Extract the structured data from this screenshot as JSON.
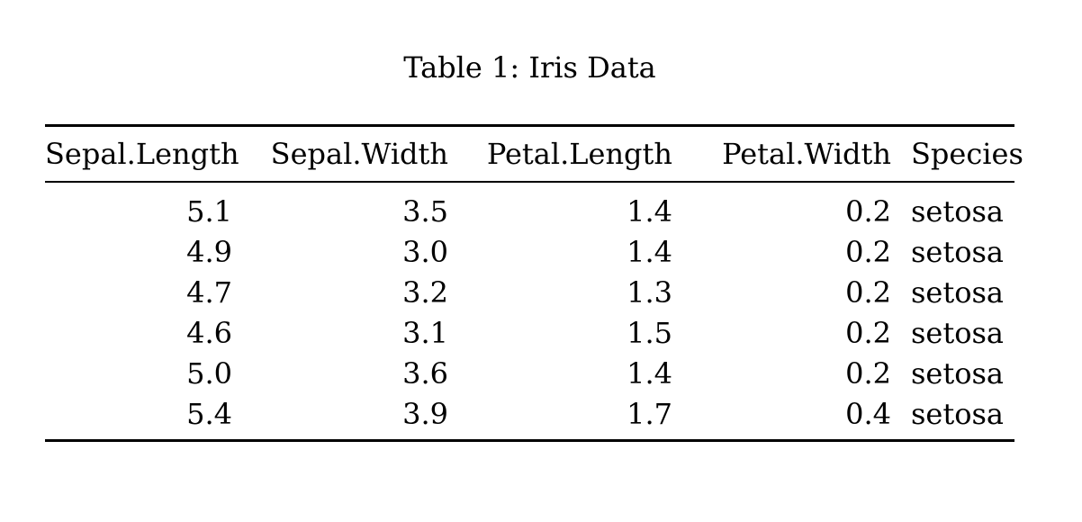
{
  "caption": "Table 1: Iris Data",
  "table": {
    "columns": [
      "Sepal.Length",
      "Sepal.Width",
      "Petal.Length",
      "Petal.Width",
      "Species"
    ],
    "rows": [
      [
        "5.1",
        "3.5",
        "1.4",
        "0.2",
        "setosa"
      ],
      [
        "4.9",
        "3.0",
        "1.4",
        "0.2",
        "setosa"
      ],
      [
        "4.7",
        "3.2",
        "1.3",
        "0.2",
        "setosa"
      ],
      [
        "4.6",
        "3.1",
        "1.5",
        "0.2",
        "setosa"
      ],
      [
        "5.0",
        "3.6",
        "1.4",
        "0.2",
        "setosa"
      ],
      [
        "5.4",
        "3.9",
        "1.7",
        "0.4",
        "setosa"
      ]
    ],
    "colors": {
      "text": "#000000",
      "background": "#ffffff",
      "rule": "#000000"
    }
  }
}
